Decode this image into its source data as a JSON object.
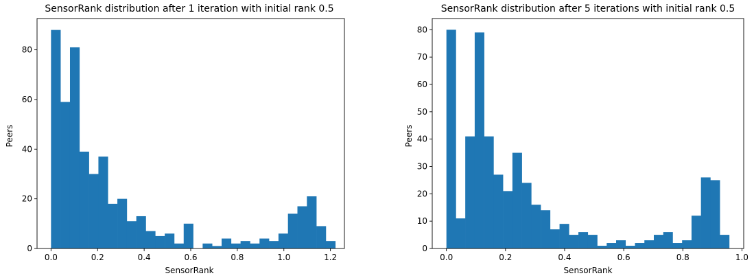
{
  "chart_data": [
    {
      "type": "bar",
      "title": "SensorRank distribution after 1 iteration with initial rank 0.5",
      "xlabel": "SensorRank",
      "ylabel": "Peers",
      "xlim": [
        -0.06,
        1.26
      ],
      "ylim": [
        0,
        92.6
      ],
      "grid": false,
      "bar_color": "#1f77b4",
      "bin_start": 0.0,
      "bin_width": 0.0407,
      "values": [
        88,
        59,
        81,
        39,
        30,
        37,
        18,
        20,
        11,
        13,
        7,
        5,
        6,
        2,
        10,
        0,
        2,
        1,
        4,
        2,
        3,
        2,
        4,
        3,
        6,
        14,
        17,
        21,
        9,
        3
      ],
      "xticks": [
        0.0,
        0.2,
        0.4,
        0.6,
        0.8,
        1.0,
        1.2
      ],
      "xtick_labels": [
        "0.0",
        "0.2",
        "0.4",
        "0.6",
        "0.8",
        "1.0",
        "1.2"
      ],
      "yticks": [
        0,
        20,
        40,
        60,
        80
      ],
      "ytick_labels": [
        "0",
        "20",
        "40",
        "60",
        "80"
      ]
    },
    {
      "type": "bar",
      "title": "SensorRank distribution after 5 iterations with initial rank 0.5",
      "xlabel": "SensorRank",
      "ylabel": "Peers",
      "xlim": [
        -0.048,
        1.006
      ],
      "ylim": [
        0,
        84.1
      ],
      "grid": false,
      "bar_color": "#1f77b4",
      "bin_start": 0.0,
      "bin_width": 0.0319,
      "values": [
        80,
        11,
        41,
        79,
        41,
        27,
        21,
        35,
        24,
        16,
        14,
        7,
        9,
        5,
        6,
        5,
        1,
        2,
        3,
        1,
        2,
        3,
        5,
        6,
        2,
        3,
        12,
        26,
        25,
        5
      ],
      "xticks": [
        0.0,
        0.2,
        0.4,
        0.6,
        0.8,
        1.0
      ],
      "xtick_labels": [
        "0.0",
        "0.2",
        "0.4",
        "0.6",
        "0.8",
        "1.0"
      ],
      "yticks": [
        0,
        10,
        20,
        30,
        40,
        50,
        60,
        70,
        80
      ],
      "ytick_labels": [
        "0",
        "10",
        "20",
        "30",
        "40",
        "50",
        "60",
        "70",
        "80"
      ]
    }
  ]
}
